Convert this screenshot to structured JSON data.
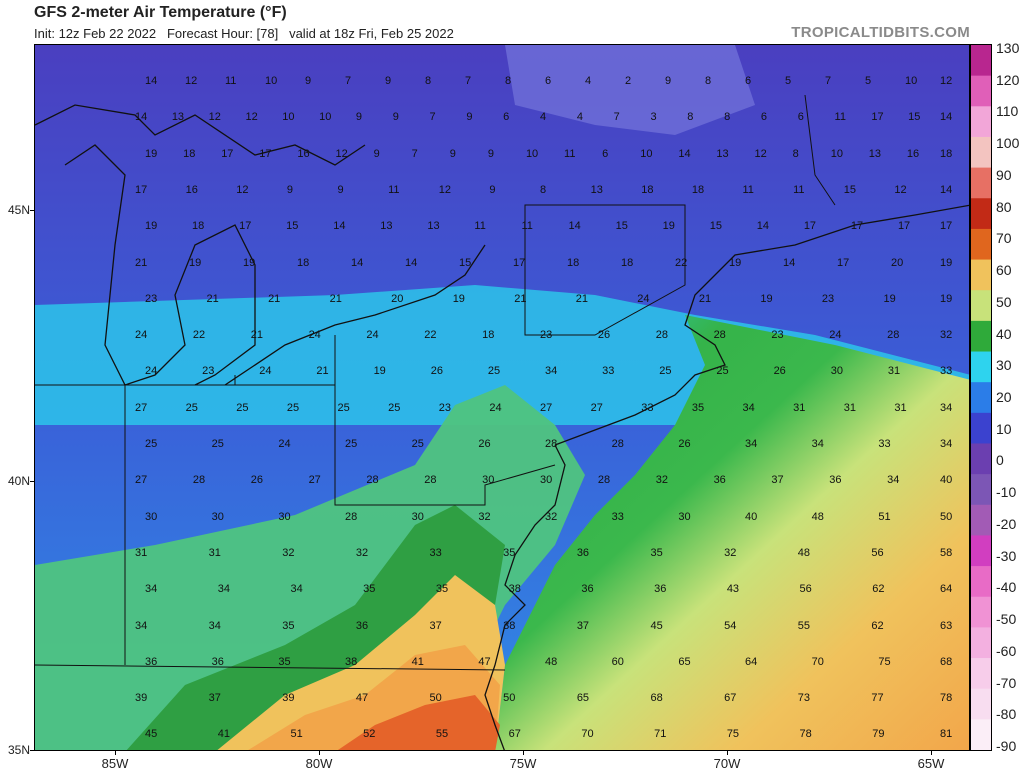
{
  "header": {
    "title": "GFS 2-meter Air Temperature (°F)",
    "subtitle": "Init: 12z Feb 22 2022   Forecast Hour: [78]   valid at 18z Fri, Feb 25 2022",
    "credit": "TROPICALTIDBITS.COM"
  },
  "colorbar": {
    "labels": [
      "130",
      "120",
      "110",
      "100",
      "90",
      "80",
      "70",
      "60",
      "50",
      "40",
      "30",
      "20",
      "10",
      "0",
      "-10",
      "-20",
      "-30",
      "-40",
      "-50",
      "-60",
      "-70",
      "-80",
      "-90"
    ],
    "colors": [
      "#b8268f",
      "#e05fb8",
      "#f2a6d8",
      "#f3c4c0",
      "#e77064",
      "#c22a16",
      "#e0661e",
      "#f0c25c",
      "#c8e27a",
      "#2faa3a",
      "#2ed3ee",
      "#2b7de8",
      "#3b42cf",
      "#6b3fb0",
      "#7c56b5",
      "#a25bb5",
      "#d13ec0",
      "#e86bc6",
      "#f092d4",
      "#f3b0e0",
      "#f7cdea",
      "#f8ddf0",
      "#fbeef7"
    ]
  },
  "axes": {
    "lat_labels": [
      "45N",
      "40N",
      "35N"
    ],
    "lon_labels": [
      "85W",
      "80W",
      "75W",
      "70W",
      "65W"
    ]
  },
  "colors": {
    "cold_deep": "#4a4fcf",
    "cold_mid": "#2b6fe0",
    "cold_light": "#2dc4ea",
    "mild": "#4bc47a",
    "green": "#36a64a",
    "warm_yellow": "#d9e36a",
    "warm_orange": "#f2a64a",
    "hot": "#e5642a",
    "hottest": "#d8451f"
  },
  "station_values": [
    [
      "14",
      "12",
      "11",
      "10",
      "9",
      "7",
      "9",
      "8",
      "7",
      "8",
      "6",
      "4",
      "2",
      "9",
      "8",
      "6",
      "5",
      "7",
      "5",
      "10",
      "12"
    ],
    [
      "14",
      "13",
      "12",
      "12",
      "10",
      "10",
      "9",
      "9",
      "7",
      "9",
      "6",
      "4",
      "4",
      "7",
      "3",
      "8",
      "8",
      "6",
      "6",
      "11",
      "17",
      "15",
      "14"
    ],
    [
      "19",
      "18",
      "17",
      "17",
      "16",
      "12",
      "9",
      "7",
      "9",
      "9",
      "10",
      "11",
      "6",
      "10",
      "14",
      "13",
      "12",
      "8",
      "10",
      "13",
      "16",
      "18"
    ],
    [
      "17",
      "16",
      "12",
      "9",
      "9",
      "11",
      "12",
      "9",
      "8",
      "13",
      "18",
      "18",
      "11",
      "11",
      "15",
      "12",
      "14"
    ],
    [
      "19",
      "18",
      "17",
      "15",
      "14",
      "13",
      "13",
      "11",
      "11",
      "14",
      "15",
      "19",
      "15",
      "14",
      "17",
      "17",
      "17",
      "17"
    ],
    [
      "21",
      "19",
      "19",
      "18",
      "14",
      "14",
      "15",
      "17",
      "18",
      "18",
      "22",
      "19",
      "14",
      "17",
      "20",
      "19"
    ],
    [
      "23",
      "21",
      "21",
      "21",
      "20",
      "19",
      "21",
      "21",
      "24",
      "21",
      "19",
      "23",
      "19",
      "19"
    ],
    [
      "24",
      "22",
      "21",
      "24",
      "24",
      "22",
      "18",
      "23",
      "26",
      "28",
      "28",
      "23",
      "24",
      "28",
      "32"
    ],
    [
      "24",
      "23",
      "24",
      "21",
      "19",
      "26",
      "25",
      "34",
      "33",
      "25",
      "25",
      "26",
      "30",
      "31",
      "33"
    ],
    [
      "27",
      "25",
      "25",
      "25",
      "25",
      "25",
      "23",
      "24",
      "27",
      "27",
      "33",
      "35",
      "34",
      "31",
      "31",
      "31",
      "34"
    ],
    [
      "25",
      "25",
      "24",
      "25",
      "25",
      "26",
      "28",
      "28",
      "26",
      "34",
      "34",
      "33",
      "34"
    ],
    [
      "27",
      "28",
      "26",
      "27",
      "28",
      "28",
      "30",
      "30",
      "28",
      "32",
      "36",
      "37",
      "36",
      "34",
      "40"
    ],
    [
      "30",
      "30",
      "30",
      "28",
      "30",
      "32",
      "32",
      "33",
      "30",
      "40",
      "48",
      "51",
      "50"
    ],
    [
      "31",
      "31",
      "32",
      "32",
      "33",
      "35",
      "36",
      "35",
      "32",
      "48",
      "56",
      "58"
    ],
    [
      "34",
      "34",
      "34",
      "35",
      "35",
      "38",
      "36",
      "36",
      "43",
      "56",
      "62",
      "64"
    ],
    [
      "34",
      "34",
      "35",
      "36",
      "37",
      "38",
      "37",
      "45",
      "54",
      "55",
      "62",
      "63"
    ],
    [
      "36",
      "36",
      "35",
      "38",
      "41",
      "47",
      "48",
      "60",
      "65",
      "64",
      "70",
      "75",
      "68"
    ],
    [
      "39",
      "37",
      "39",
      "47",
      "50",
      "50",
      "65",
      "68",
      "67",
      "73",
      "77",
      "78"
    ],
    [
      "45",
      "41",
      "51",
      "52",
      "55",
      "67",
      "70",
      "71",
      "75",
      "78",
      "79",
      "81"
    ]
  ]
}
